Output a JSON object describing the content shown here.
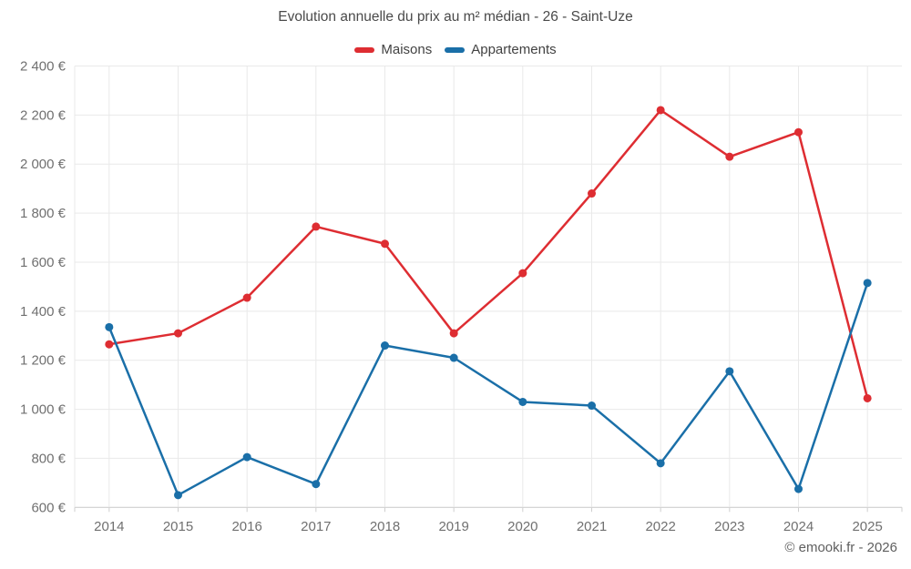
{
  "chart": {
    "title": "Evolution annuelle du prix au m² médian - 26 - Saint-Uze",
    "footer": "© emooki.fr - 2026"
  },
  "chart_data": {
    "type": "line",
    "title": "Evolution annuelle du prix au m² médian - 26 - Saint-Uze",
    "categories": [
      "2014",
      "2015",
      "2016",
      "2017",
      "2018",
      "2019",
      "2020",
      "2021",
      "2022",
      "2023",
      "2024",
      "2025"
    ],
    "series": [
      {
        "name": "Maisons",
        "color": "#de2d32",
        "values": [
          1265,
          1310,
          1455,
          1745,
          1675,
          1310,
          1555,
          1880,
          2220,
          2030,
          2130,
          1045
        ]
      },
      {
        "name": "Appartements",
        "color": "#1a6fa8",
        "values": [
          1335,
          650,
          805,
          695,
          1260,
          1210,
          1030,
          1015,
          780,
          1155,
          675,
          1515
        ]
      }
    ],
    "xlabel": "",
    "ylabel": "",
    "ylim": [
      600,
      2400
    ],
    "ytick_step": 200,
    "ytick_suffix": " €",
    "grid": true,
    "legend_position": "top",
    "marker": "circle"
  }
}
